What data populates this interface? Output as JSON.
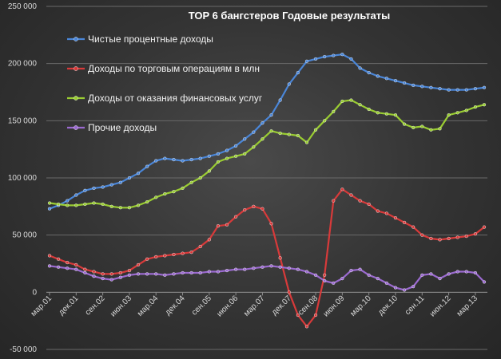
{
  "chart_data": {
    "type": "line",
    "title": "TOP 6 бангстеров Годовые результаты",
    "xlabel": "",
    "ylabel": "",
    "ylim": [
      -50000,
      250000
    ],
    "yticks": [
      -50000,
      0,
      50000,
      100000,
      150000,
      200000,
      250000
    ],
    "ytick_labels": [
      "-50 000",
      "0",
      "50 000",
      "100 000",
      "150 000",
      "200 000",
      "250 000"
    ],
    "x": [
      "2001-03",
      "2001-06",
      "2001-09",
      "2001-12",
      "2002-03",
      "2002-06",
      "2002-09",
      "2002-12",
      "2003-03",
      "2003-06",
      "2003-09",
      "2003-12",
      "2004-03",
      "2004-06",
      "2004-09",
      "2004-12",
      "2005-03",
      "2005-06",
      "2005-09",
      "2005-12",
      "2006-03",
      "2006-06",
      "2006-09",
      "2006-12",
      "2007-03",
      "2007-06",
      "2007-09",
      "2007-12",
      "2008-03",
      "2008-06",
      "2008-09",
      "2008-12",
      "2009-03",
      "2009-06",
      "2009-09",
      "2009-12",
      "2010-03",
      "2010-06",
      "2010-09",
      "2010-12",
      "2011-03",
      "2011-06",
      "2011-09",
      "2011-12",
      "2012-03",
      "2012-06",
      "2012-09",
      "2012-12",
      "2013-03",
      "2013-06"
    ],
    "xtick_labels": [
      "мар.01",
      "дек.01",
      "сен.02",
      "июн.03",
      "мар.04",
      "дек.04",
      "сен.05",
      "июн.06",
      "мар.07",
      "дек.07",
      "сен.08",
      "июн.09",
      "мар.10",
      "дек.10",
      "сен.11",
      "июн.12",
      "мар.13"
    ],
    "legend_position": "top-left",
    "grid": true,
    "series": [
      {
        "name": "Чистые процентные доходы",
        "color": "#4a86d8",
        "values": [
          73000,
          76000,
          80000,
          85000,
          89000,
          91000,
          92000,
          94000,
          96000,
          100000,
          104000,
          110000,
          115000,
          117000,
          116000,
          115000,
          116000,
          117000,
          119000,
          121000,
          124000,
          128000,
          134000,
          140000,
          148000,
          155000,
          168000,
          182000,
          192000,
          202000,
          204000,
          206000,
          207000,
          208000,
          204000,
          196000,
          192000,
          189000,
          187000,
          185000,
          183000,
          181000,
          180000,
          179000,
          178000,
          177000,
          177000,
          177000,
          178000,
          179000
        ]
      },
      {
        "name": "Доходы по торговым операциям в млн",
        "color": "#d83a3a",
        "values": [
          32000,
          29000,
          26000,
          24000,
          20000,
          18000,
          16000,
          16000,
          17000,
          19000,
          24000,
          29000,
          31000,
          32000,
          33000,
          34000,
          35000,
          40000,
          46000,
          58000,
          59000,
          66000,
          72000,
          75000,
          73000,
          60000,
          30000,
          0,
          -20000,
          -30000,
          -20000,
          15000,
          80000,
          90000,
          85000,
          80000,
          77000,
          71000,
          69000,
          65000,
          61000,
          57000,
          50000,
          47000,
          46000,
          47000,
          48000,
          49000,
          51000,
          57000
        ]
      },
      {
        "name": "Доходы от оказания финансовых услуг",
        "color": "#9acd32",
        "values": [
          78000,
          77000,
          76000,
          76000,
          77000,
          78000,
          77000,
          75000,
          74000,
          74000,
          76000,
          79000,
          83000,
          86000,
          88000,
          91000,
          96000,
          100000,
          106000,
          114000,
          117000,
          119000,
          121000,
          127000,
          134000,
          141000,
          139000,
          138000,
          137000,
          131000,
          142000,
          150000,
          158000,
          167000,
          168000,
          164000,
          160000,
          157000,
          156000,
          155000,
          147000,
          144000,
          145000,
          142000,
          143000,
          155000,
          157000,
          159000,
          162000,
          164000
        ]
      },
      {
        "name": "Прочие доходы",
        "color": "#9b6ad0",
        "values": [
          23000,
          22000,
          21000,
          20000,
          17000,
          14000,
          12000,
          11000,
          13000,
          15000,
          16000,
          16000,
          16000,
          15000,
          16000,
          17000,
          17000,
          17000,
          18000,
          18000,
          19000,
          20000,
          20000,
          21000,
          22000,
          23000,
          22000,
          21000,
          20000,
          18000,
          15000,
          10000,
          8000,
          12000,
          19000,
          20000,
          15000,
          12000,
          8000,
          4000,
          2000,
          5000,
          15000,
          16000,
          12000,
          16000,
          18000,
          18000,
          17000,
          9000
        ]
      }
    ]
  }
}
